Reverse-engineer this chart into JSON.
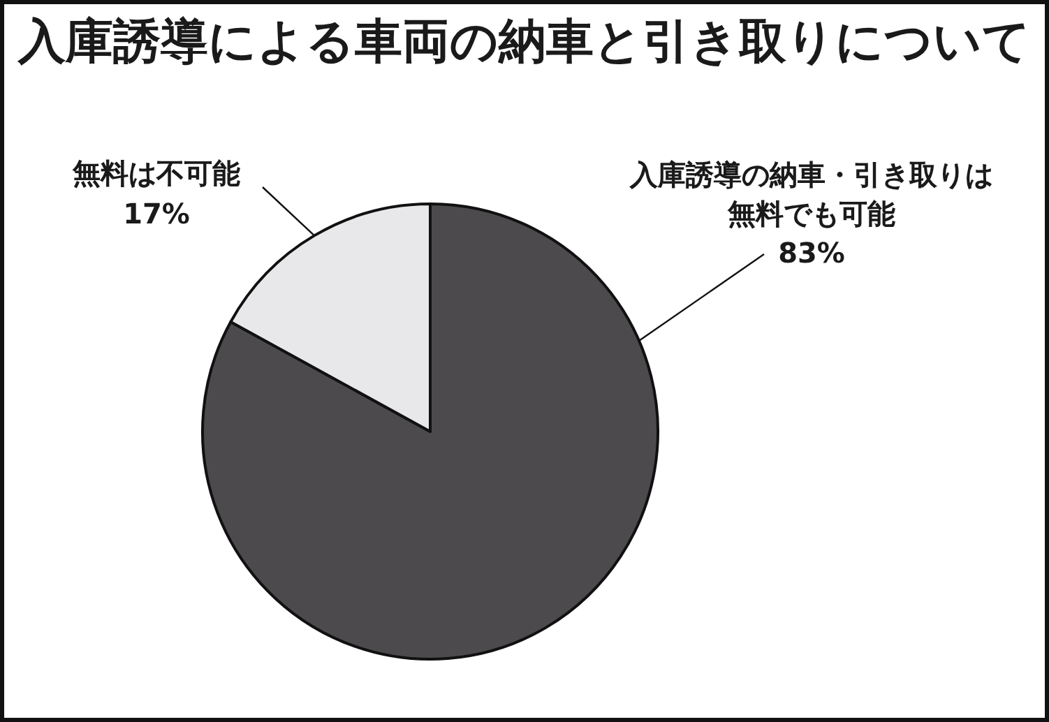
{
  "chart_data": {
    "type": "pie",
    "title": "入庫誘導による車両の納車と引き取りについて",
    "categories": [
      "入庫誘導の納車・引き取りは無料でも可能",
      "無料は不可能"
    ],
    "values": [
      83,
      17
    ],
    "colors": [
      "#4c4a4c",
      "#e8e8ea"
    ],
    "value_labels": [
      "83%",
      "17%"
    ]
  }
}
